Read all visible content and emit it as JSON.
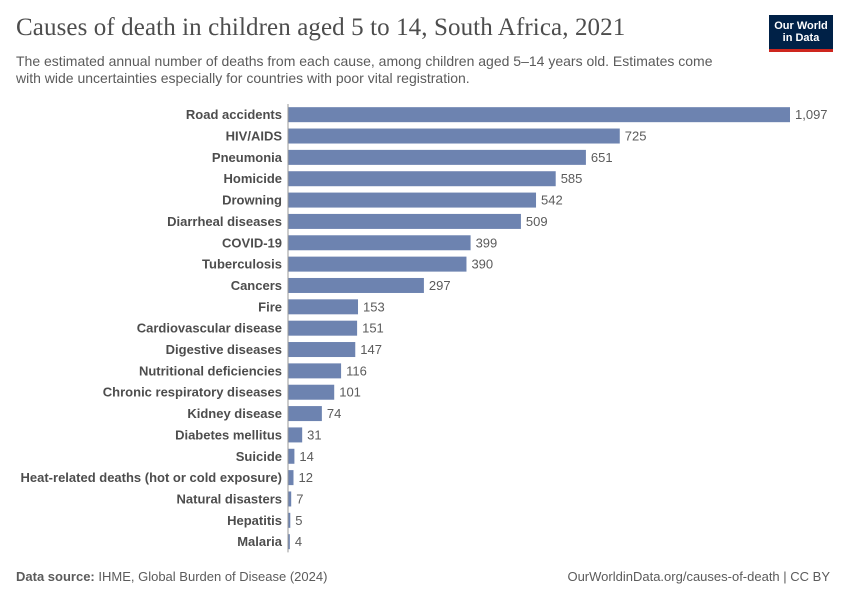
{
  "header": {
    "title": "Causes of death in children aged 5 to 14, South Africa, 2021",
    "subtitle": "The estimated annual number of deaths from each cause, among children aged 5–14 years old. Estimates come with wide uncertainties especially for countries with poor vital registration."
  },
  "logo": {
    "line1": "Our World",
    "line2": "in Data"
  },
  "footer": {
    "source_label": "Data source:",
    "source_text": "IHME, Global Burden of Disease (2024)",
    "url_text": "OurWorldinData.org/causes-of-death | CC BY"
  },
  "colors": {
    "bar": "#6d83b0",
    "axis": "#999999",
    "logo_bg": "#002147",
    "logo_accent": "#ce261e"
  },
  "chart_data": {
    "type": "bar",
    "orientation": "horizontal",
    "title": "Causes of death in children aged 5 to 14, South Africa, 2021",
    "xlabel": "",
    "ylabel": "",
    "xlim": [
      0,
      1097
    ],
    "categories": [
      "Road accidents",
      "HIV/AIDS",
      "Pneumonia",
      "Homicide",
      "Drowning",
      "Diarrheal diseases",
      "COVID-19",
      "Tuberculosis",
      "Cancers",
      "Fire",
      "Cardiovascular disease",
      "Digestive diseases",
      "Nutritional deficiencies",
      "Chronic respiratory diseases",
      "Kidney disease",
      "Diabetes mellitus",
      "Suicide",
      "Heat-related deaths (hot or cold exposure)",
      "Natural disasters",
      "Hepatitis",
      "Malaria"
    ],
    "values": [
      1097,
      725,
      651,
      585,
      542,
      509,
      399,
      390,
      297,
      153,
      151,
      147,
      116,
      101,
      74,
      31,
      14,
      12,
      7,
      5,
      4
    ],
    "value_labels": [
      "1,097",
      "725",
      "651",
      "585",
      "542",
      "509",
      "399",
      "390",
      "297",
      "153",
      "151",
      "147",
      "116",
      "101",
      "74",
      "31",
      "14",
      "12",
      "7",
      "5",
      "4"
    ]
  }
}
